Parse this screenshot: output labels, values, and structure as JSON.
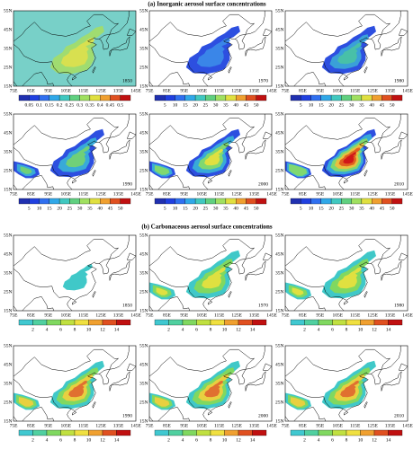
{
  "sections": [
    {
      "title": "(a) Inorganic aerosol surface concentrations",
      "panels": [
        {
          "year": "1850",
          "colorbar": [
            "0.05",
            "0.1",
            "0.15",
            "0.2",
            "0.25",
            "0.3",
            "0.35",
            "0.4",
            "0.45",
            "0.5"
          ]
        },
        {
          "year": "1970",
          "colorbar": [
            "5",
            "10",
            "15",
            "20",
            "25",
            "30",
            "35",
            "40",
            "45",
            "50"
          ]
        },
        {
          "year": "1980",
          "colorbar": [
            "5",
            "10",
            "15",
            "20",
            "25",
            "30",
            "35",
            "40",
            "45",
            "50"
          ]
        },
        {
          "year": "1990",
          "colorbar": [
            "5",
            "10",
            "15",
            "20",
            "25",
            "30",
            "35",
            "40",
            "45",
            "50"
          ]
        },
        {
          "year": "2000",
          "colorbar": [
            "5",
            "10",
            "15",
            "20",
            "25",
            "30",
            "35",
            "40",
            "45",
            "50"
          ]
        },
        {
          "year": "2010",
          "colorbar": [
            "5",
            "10",
            "15",
            "20",
            "25",
            "30",
            "35",
            "40",
            "45",
            "50"
          ]
        }
      ]
    },
    {
      "title": "(b) Carbonaceous aerosol surface concentrations",
      "panels": [
        {
          "year": "1850",
          "colorbar": [
            "2",
            "4",
            "6",
            "8",
            "10",
            "12",
            "14"
          ]
        },
        {
          "year": "1970",
          "colorbar": [
            "2",
            "4",
            "6",
            "8",
            "10",
            "12",
            "14"
          ]
        },
        {
          "year": "1980",
          "colorbar": [
            "2",
            "4",
            "6",
            "8",
            "10",
            "12",
            "14"
          ]
        },
        {
          "year": "1990",
          "colorbar": [
            "2",
            "4",
            "6",
            "8",
            "10",
            "12",
            "14"
          ]
        },
        {
          "year": "2000",
          "colorbar": [
            "2",
            "4",
            "6",
            "8",
            "10",
            "12",
            "14"
          ]
        },
        {
          "year": "2010",
          "colorbar": [
            "2",
            "4",
            "6",
            "8",
            "10",
            "12",
            "14"
          ]
        }
      ]
    }
  ],
  "lat_labels": [
    "15N",
    "25N",
    "35N",
    "45N",
    "55N"
  ],
  "lon_labels": [
    "75E",
    "85E",
    "95E",
    "105E",
    "115E",
    "125E",
    "135E",
    "145E"
  ]
}
